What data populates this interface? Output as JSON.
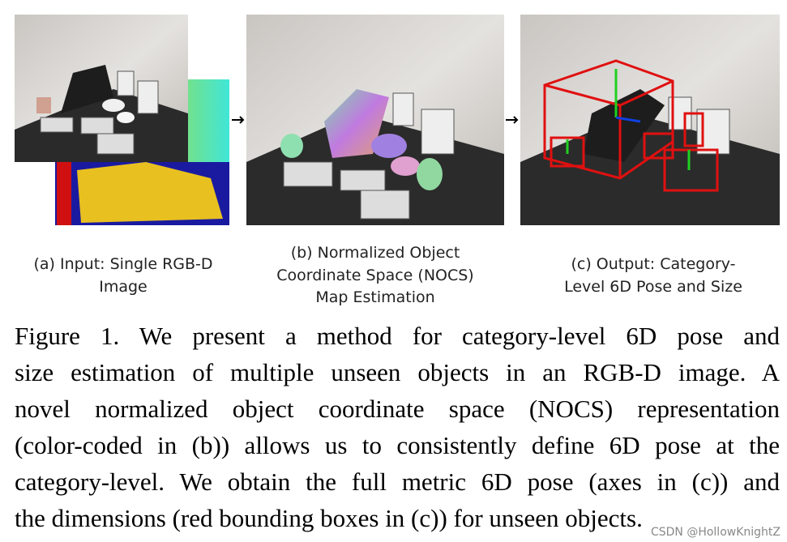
{
  "figure": {
    "panels": [
      {
        "caption_lines": [
          "(a) Input: Single RGB-D",
          "Image"
        ]
      },
      {
        "caption_lines": [
          "(b) Normalized Object",
          "Coordinate Space (NOCS)",
          "Map Estimation"
        ]
      },
      {
        "caption_lines": [
          "(c) Output: Category-",
          "Level 6D Pose and Size"
        ]
      }
    ],
    "caption_lines": [
      "Figure 1. We present a method for category-level 6D pose and",
      "size estimation of multiple unseen objects in an RGB-D image. A",
      "novel normalized object coordinate space (NOCS) representation",
      "(color-coded in (b)) allows us to consistently define 6D pose at the",
      "category-level. We obtain the full metric 6D pose (axes in (c)) and",
      "the dimensions (red bounding boxes in (c)) for unseen objects."
    ],
    "watermark": "CSDN @HollowKnightZ"
  }
}
